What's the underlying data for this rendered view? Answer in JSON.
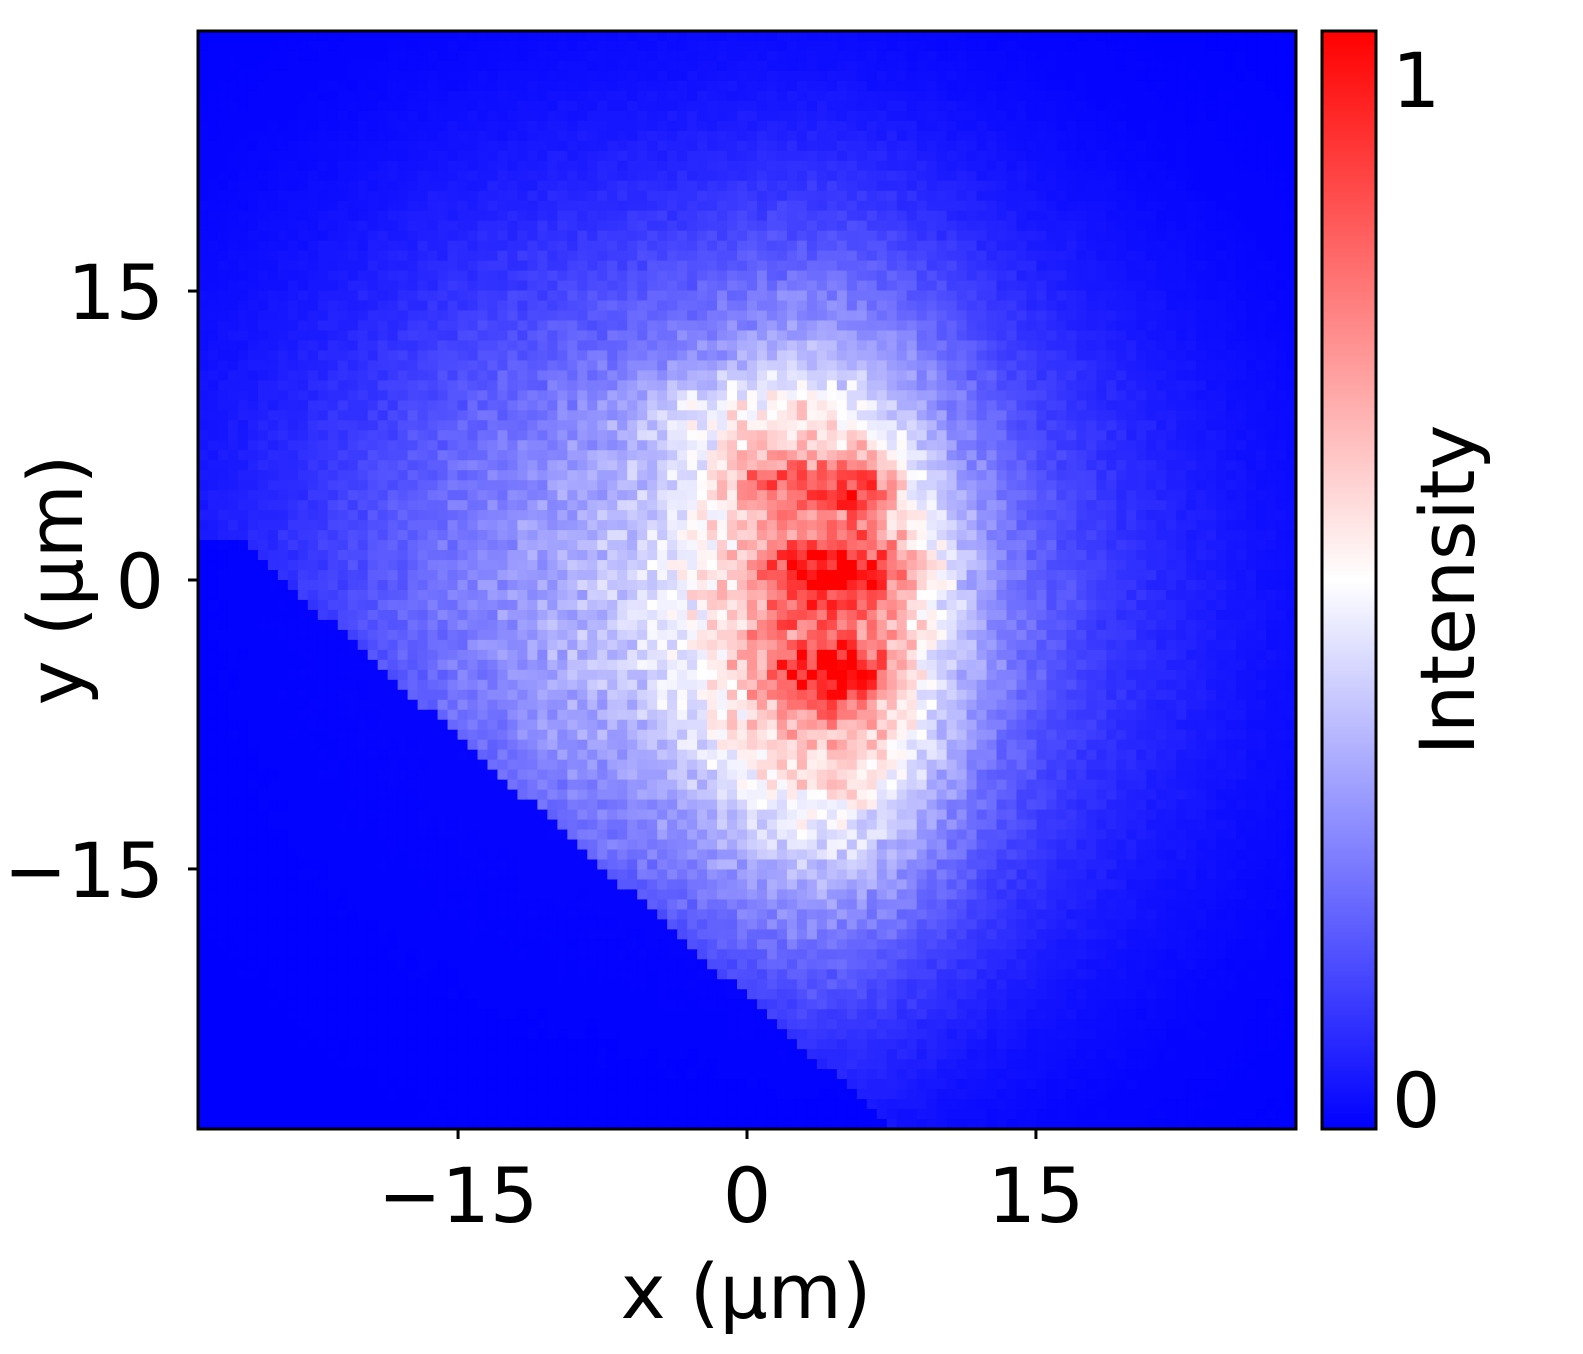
{
  "chart_data": {
    "type": "heatmap",
    "title": "",
    "xlabel": "x (μm)",
    "ylabel": "y (μm)",
    "xlim": [
      -28.5,
      28.5
    ],
    "ylim": [
      -28.5,
      28.5
    ],
    "x_ticks": [
      {
        "value": -15,
        "label": "−15"
      },
      {
        "value": 0,
        "label": "0"
      },
      {
        "value": 15,
        "label": "15"
      }
    ],
    "y_ticks": [
      {
        "value": 15,
        "label": "15"
      },
      {
        "value": 0,
        "label": "0"
      },
      {
        "value": -15,
        "label": "−15"
      }
    ],
    "grid": false,
    "colorbar": {
      "label": "Intensity",
      "range": [
        0,
        1
      ],
      "colors": [
        "#0000ff",
        "#ffffff",
        "#ff0000"
      ],
      "ticks": [
        {
          "value": 1,
          "label": "1"
        },
        {
          "value": 0,
          "label": "0"
        }
      ]
    },
    "intensity_model": {
      "grid_cells": [
        110,
        110
      ],
      "noise": 0.07,
      "components": [
        {
          "cx": -2.0,
          "cy": -1.0,
          "sx": 13.0,
          "sy": 12.0,
          "amp": 0.4
        },
        {
          "cx": 4.5,
          "cy": -2.5,
          "sx": 4.5,
          "sy": 10.0,
          "amp": 0.42
        },
        {
          "cx": 5.0,
          "cy": 0.5,
          "sx": 2.5,
          "sy": 1.2,
          "amp": 0.3
        },
        {
          "cx": 5.5,
          "cy": 5.0,
          "sx": 1.6,
          "sy": 1.1,
          "amp": 0.28
        },
        {
          "cx": 4.5,
          "cy": -5.0,
          "sx": 2.0,
          "sy": 1.1,
          "amp": 0.32
        },
        {
          "cx": 1.0,
          "cy": 5.0,
          "sx": 2.0,
          "sy": 1.0,
          "amp": 0.22
        },
        {
          "cx": -1.0,
          "cy": 8.5,
          "sx": 3.5,
          "sy": 1.5,
          "amp": 0.12
        }
      ]
    }
  }
}
